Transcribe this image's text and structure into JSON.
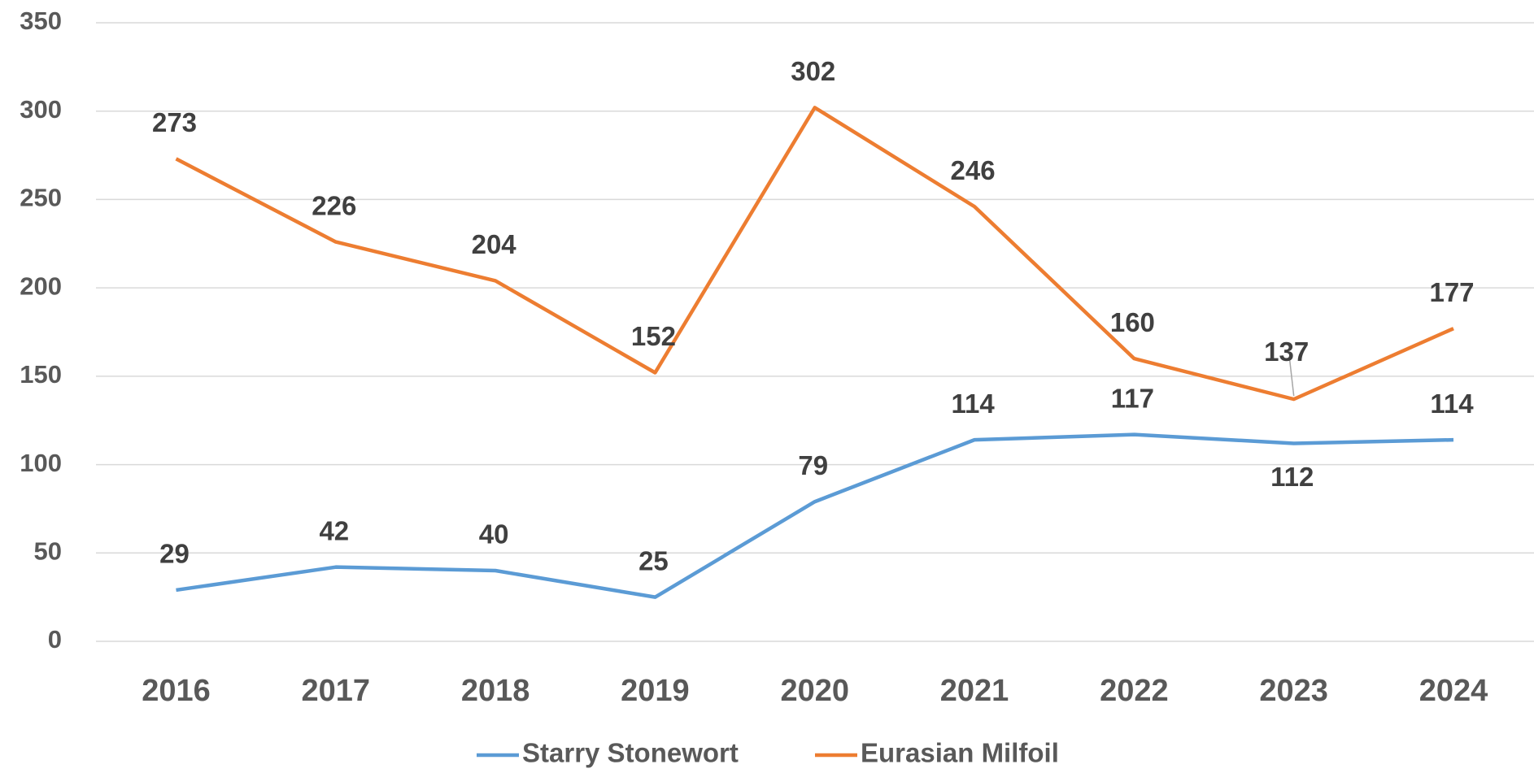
{
  "chart_data": {
    "type": "line",
    "categories": [
      "2016",
      "2017",
      "2018",
      "2019",
      "2020",
      "2021",
      "2022",
      "2023",
      "2024"
    ],
    "series": [
      {
        "name": "Starry Stonewort",
        "color": "#5b9bd5",
        "values": [
          29,
          42,
          40,
          25,
          79,
          114,
          117,
          112,
          114
        ]
      },
      {
        "name": "Eurasian Milfoil",
        "color": "#ed7d31",
        "values": [
          273,
          226,
          204,
          152,
          302,
          246,
          160,
          137,
          177
        ]
      }
    ],
    "ylim": [
      0,
      350
    ],
    "yticks": [
      0,
      50,
      100,
      150,
      200,
      250,
      300,
      350
    ],
    "grid": true,
    "legend": "bottom"
  }
}
